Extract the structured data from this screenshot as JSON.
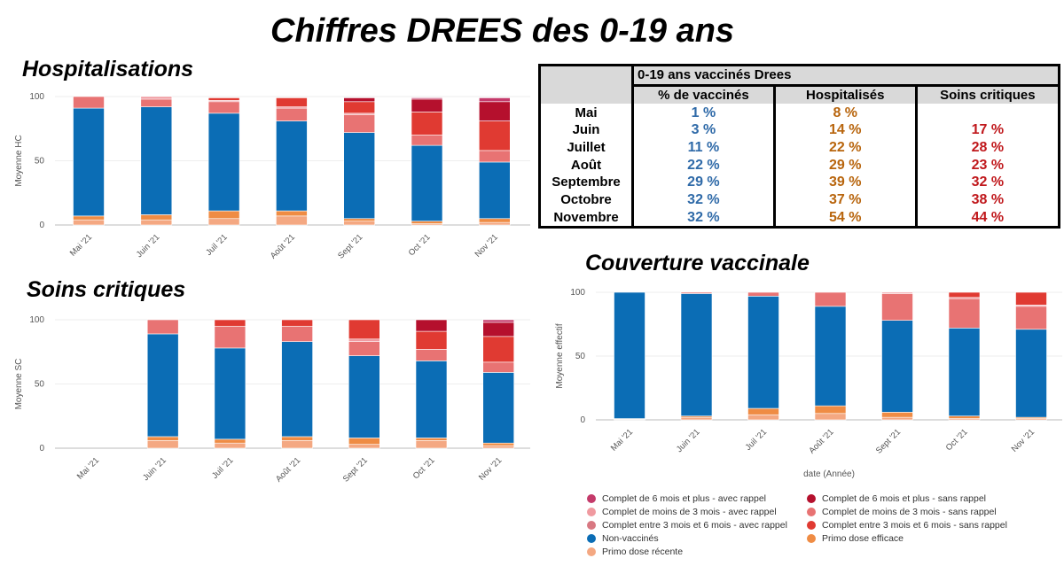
{
  "titles": {
    "main": "Chiffres DREES des 0-19 ans",
    "hospitalisations": "Hospitalisations",
    "soins_critiques": "Soins critiques",
    "couverture": "Couverture vaccinale"
  },
  "colors": {
    "rappel6": "#c43a6a",
    "rappel_lt3": "#f09aa0",
    "rappel_3_6": "#d87882",
    "non_vaccines": "#0b6db5",
    "primo_recente": "#f4a882",
    "sans_rappel6": "#b5102d",
    "sans_rappel_lt3": "#e87373",
    "sans_rappel_3_6": "#e03a32",
    "primo_efficace": "#ef8c44"
  },
  "stack_order": [
    "primo_recente",
    "primo_efficace",
    "non_vaccines",
    "sans_rappel_lt3",
    "rappel_lt3",
    "sans_rappel_3_6",
    "rappel_3_6",
    "sans_rappel6",
    "rappel6"
  ],
  "legend": [
    {
      "key": "rappel6",
      "label": "Complet de 6 mois et plus - avec rappel"
    },
    {
      "key": "sans_rappel6",
      "label": "Complet de 6 mois et plus - sans rappel"
    },
    {
      "key": "rappel_lt3",
      "label": "Complet de moins de 3 mois - avec rappel"
    },
    {
      "key": "sans_rappel_lt3",
      "label": "Complet de moins de 3 mois - sans rappel"
    },
    {
      "key": "rappel_3_6",
      "label": "Complet entre 3 mois et 6 mois - avec rappel"
    },
    {
      "key": "sans_rappel_3_6",
      "label": "Complet entre 3 mois et 6 mois - sans rappel"
    },
    {
      "key": "non_vaccines",
      "label": "Non-vaccinés"
    },
    {
      "key": "primo_efficace",
      "label": "Primo dose efficace"
    },
    {
      "key": "primo_recente",
      "label": "Primo dose récente"
    }
  ],
  "table": {
    "title": "0-19 ans vaccinés Drees",
    "headers": [
      "% de vaccinés",
      "Hospitalisés",
      "Soins critiques"
    ],
    "rows": [
      {
        "month": "Mai",
        "vaccines": "1 %",
        "hospitalises": "8 %",
        "soins": ""
      },
      {
        "month": "Juin",
        "vaccines": "3 %",
        "hospitalises": "14 %",
        "soins": "17 %"
      },
      {
        "month": "Juillet",
        "vaccines": "11 %",
        "hospitalises": "22 %",
        "soins": "28 %"
      },
      {
        "month": "Août",
        "vaccines": "22 %",
        "hospitalises": "29 %",
        "soins": "23 %"
      },
      {
        "month": "Septembre",
        "vaccines": "29 %",
        "hospitalises": "39 %",
        "soins": "32 %"
      },
      {
        "month": "Octobre",
        "vaccines": "32 %",
        "hospitalises": "37 %",
        "soins": "38 %"
      },
      {
        "month": "Novembre",
        "vaccines": "32 %",
        "hospitalises": "54 %",
        "soins": "44 %"
      }
    ]
  },
  "chart_data": [
    {
      "id": "hospitalisations",
      "type": "bar",
      "stacked": true,
      "title": "Hospitalisations",
      "ylabel": "Moyenne HC",
      "xlabel": "",
      "ylim": [
        0,
        100
      ],
      "yticks": [
        0,
        50,
        100
      ],
      "categories": [
        "Mai '21",
        "Juin '21",
        "Juil '21",
        "Août '21",
        "Sept '21",
        "Oct '21",
        "Nov '21"
      ],
      "series": [
        {
          "key": "primo_recente",
          "name": "Primo dose récente",
          "values": [
            4,
            4,
            5,
            7,
            3,
            1,
            2
          ]
        },
        {
          "key": "primo_efficace",
          "name": "Primo dose efficace",
          "values": [
            3,
            4,
            6,
            4,
            2,
            2,
            3
          ]
        },
        {
          "key": "non_vaccines",
          "name": "Non-vaccinés",
          "values": [
            84,
            84,
            76,
            70,
            67,
            59,
            44
          ]
        },
        {
          "key": "sans_rappel_lt3",
          "name": "Complet de moins de 3 mois - sans rappel",
          "values": [
            9,
            6,
            9,
            10,
            14,
            8,
            9
          ]
        },
        {
          "key": "rappel_lt3",
          "name": "Complet de moins de 3 mois - avec rappel",
          "values": [
            0,
            2,
            1,
            1,
            1,
            0,
            0
          ]
        },
        {
          "key": "sans_rappel_3_6",
          "name": "Complet entre 3 mois et 6 mois - sans rappel",
          "values": [
            0,
            0,
            2,
            7,
            9,
            18,
            23
          ]
        },
        {
          "key": "rappel_3_6",
          "name": "Complet entre 3 mois et 6 mois - avec rappel",
          "values": [
            0,
            0,
            0,
            0,
            0,
            0,
            0
          ]
        },
        {
          "key": "sans_rappel6",
          "name": "Complet de 6 mois et plus - sans rappel",
          "values": [
            0,
            0,
            0,
            0,
            3,
            10,
            15
          ]
        },
        {
          "key": "rappel6",
          "name": "Complet de 6 mois et plus - avec rappel",
          "values": [
            0,
            0,
            0,
            0,
            0,
            1,
            3
          ]
        }
      ]
    },
    {
      "id": "soins",
      "type": "bar",
      "stacked": true,
      "title": "Soins critiques",
      "ylabel": "Moyenne SC",
      "xlabel": "",
      "ylim": [
        0,
        100
      ],
      "yticks": [
        0,
        50,
        100
      ],
      "categories": [
        "Mai '21",
        "Juin '21",
        "Juil '21",
        "Août '21",
        "Sept '21",
        "Oct '21",
        "Nov '21"
      ],
      "series": [
        {
          "key": "primo_recente",
          "name": "Primo dose récente",
          "values": [
            0,
            6,
            4,
            6,
            3,
            6,
            2
          ]
        },
        {
          "key": "primo_efficace",
          "name": "Primo dose efficace",
          "values": [
            0,
            3,
            3,
            3,
            5,
            2,
            2
          ]
        },
        {
          "key": "non_vaccines",
          "name": "Non-vaccinés",
          "values": [
            0,
            80,
            71,
            74,
            64,
            60,
            55
          ]
        },
        {
          "key": "sans_rappel_lt3",
          "name": "Complet de moins de 3 mois - sans rappel",
          "values": [
            0,
            11,
            17,
            12,
            11,
            9,
            8
          ]
        },
        {
          "key": "rappel_lt3",
          "name": "Complet de moins de 3 mois - avec rappel",
          "values": [
            0,
            0,
            0,
            0,
            2,
            0,
            0
          ]
        },
        {
          "key": "sans_rappel_3_6",
          "name": "Complet entre 3 mois et 6 mois - sans rappel",
          "values": [
            0,
            0,
            5,
            5,
            15,
            14,
            20
          ]
        },
        {
          "key": "rappel_3_6",
          "name": "Complet entre 3 mois et 6 mois - avec rappel",
          "values": [
            0,
            0,
            0,
            0,
            0,
            0,
            0
          ]
        },
        {
          "key": "sans_rappel6",
          "name": "Complet de 6 mois et plus - sans rappel",
          "values": [
            0,
            0,
            0,
            0,
            0,
            9,
            11
          ]
        },
        {
          "key": "rappel6",
          "name": "Complet de 6 mois et plus - avec rappel",
          "values": [
            0,
            0,
            0,
            0,
            0,
            0,
            2
          ]
        }
      ]
    },
    {
      "id": "couverture",
      "type": "bar",
      "stacked": true,
      "title": "Couverture vaccinale",
      "ylabel": "Moyenne effectif",
      "xlabel": "date (Année)",
      "ylim": [
        0,
        100
      ],
      "yticks": [
        0,
        50,
        100
      ],
      "categories": [
        "Mai '21",
        "Juin '21",
        "Juil '21",
        "Août '21",
        "Sept '21",
        "Oct '21",
        "Nov '21"
      ],
      "series": [
        {
          "key": "primo_recente",
          "name": "Primo dose récente",
          "values": [
            0.5,
            2,
            4,
            5,
            2,
            1,
            1
          ]
        },
        {
          "key": "primo_efficace",
          "name": "Primo dose efficace",
          "values": [
            0.5,
            1,
            5,
            6,
            4,
            2,
            1
          ]
        },
        {
          "key": "non_vaccines",
          "name": "Non-vaccinés",
          "values": [
            99,
            96,
            88,
            78,
            72,
            69,
            69
          ]
        },
        {
          "key": "sans_rappel_lt3",
          "name": "Complet de moins de 3 mois - sans rappel",
          "values": [
            0,
            1,
            3,
            11,
            21,
            23,
            18
          ]
        },
        {
          "key": "rappel_lt3",
          "name": "Complet de moins de 3 mois - avec rappel",
          "values": [
            0,
            0,
            0,
            0,
            1,
            1,
            1
          ]
        },
        {
          "key": "sans_rappel_3_6",
          "name": "Complet entre 3 mois et 6 mois - sans rappel",
          "values": [
            0,
            0,
            0,
            0,
            0,
            4,
            10
          ]
        },
        {
          "key": "rappel_3_6",
          "name": "Complet entre 3 mois et 6 mois - avec rappel",
          "values": [
            0,
            0,
            0,
            0,
            0,
            0,
            0
          ]
        },
        {
          "key": "sans_rappel6",
          "name": "Complet de 6 mois et plus - sans rappel",
          "values": [
            0,
            0,
            0,
            0,
            0,
            0,
            0
          ]
        },
        {
          "key": "rappel6",
          "name": "Complet de 6 mois et plus - avec rappel",
          "values": [
            0,
            0,
            0,
            0,
            0,
            0,
            0
          ]
        }
      ]
    }
  ]
}
